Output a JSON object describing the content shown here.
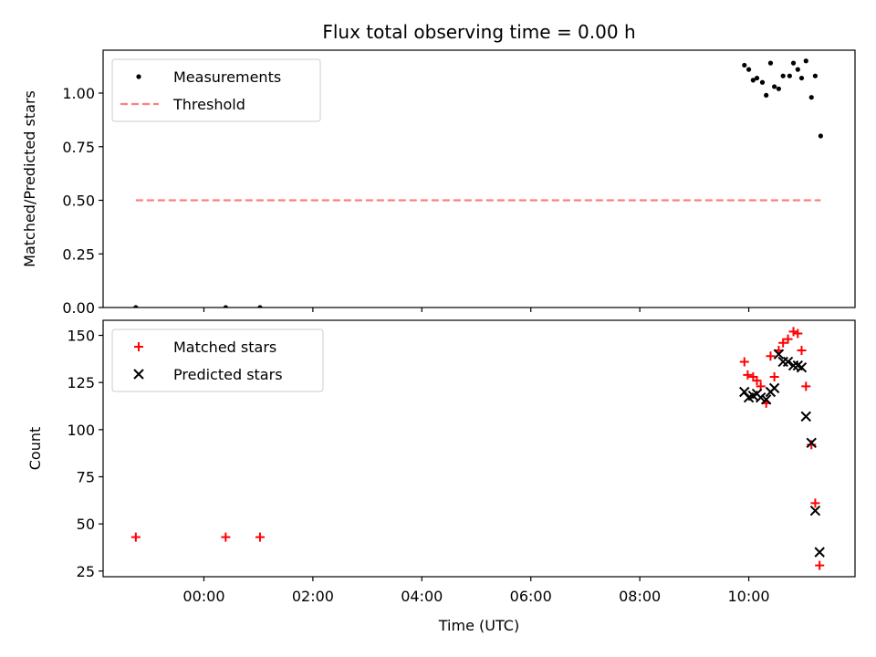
{
  "chart_data": {
    "type": "scatter",
    "title": "Flux total observing time = 0.00 h",
    "xlabel": "Time (UTC)",
    "xlim_hours": [
      -1.85,
      11.95
    ],
    "x_ticks": [
      {
        "value": 0,
        "label": "00:00"
      },
      {
        "value": 2,
        "label": "02:00"
      },
      {
        "value": 4,
        "label": "04:00"
      },
      {
        "value": 6,
        "label": "06:00"
      },
      {
        "value": 8,
        "label": "08:00"
      },
      {
        "value": 10,
        "label": "10:00"
      }
    ],
    "panels": [
      {
        "id": "ratio",
        "ylabel": "Matched/Predicted stars",
        "ylim": [
          0,
          1.2
        ],
        "y_ticks": [
          {
            "value": 0,
            "label": "0.00"
          },
          {
            "value": 0.25,
            "label": "0.25"
          },
          {
            "value": 0.5,
            "label": "0.50"
          },
          {
            "value": 0.75,
            "label": "0.75"
          },
          {
            "value": 1.0,
            "label": "1.00"
          }
        ],
        "legend": [
          "Measurements",
          "Threshold"
        ],
        "series": [
          {
            "name": "Measurements",
            "marker": "dot",
            "color": "#000000",
            "points": [
              [
                -1.25,
                0.0
              ],
              [
                0.4,
                0.0
              ],
              [
                1.03,
                0.0
              ],
              [
                9.92,
                1.13
              ],
              [
                10.0,
                1.11
              ],
              [
                10.08,
                1.06
              ],
              [
                10.15,
                1.07
              ],
              [
                10.25,
                1.05
              ],
              [
                10.32,
                0.99
              ],
              [
                10.4,
                1.14
              ],
              [
                10.47,
                1.03
              ],
              [
                10.55,
                1.02
              ],
              [
                10.63,
                1.08
              ],
              [
                10.75,
                1.08
              ],
              [
                10.82,
                1.14
              ],
              [
                10.9,
                1.11
              ],
              [
                10.97,
                1.07
              ],
              [
                11.05,
                1.15
              ],
              [
                11.15,
                0.98
              ],
              [
                11.22,
                1.08
              ],
              [
                11.32,
                0.8
              ]
            ]
          },
          {
            "name": "Threshold",
            "marker": "dashed-line",
            "color": "#ff7f7f",
            "points": [
              [
                -1.25,
                0.5
              ],
              [
                11.32,
                0.5
              ]
            ]
          }
        ]
      },
      {
        "id": "counts",
        "ylabel": "Count",
        "ylim": [
          22,
          158
        ],
        "y_ticks": [
          {
            "value": 25,
            "label": "25"
          },
          {
            "value": 50,
            "label": "50"
          },
          {
            "value": 75,
            "label": "75"
          },
          {
            "value": 100,
            "label": "100"
          },
          {
            "value": 125,
            "label": "125"
          },
          {
            "value": 150,
            "label": "150"
          }
        ],
        "legend": [
          "Matched stars",
          "Predicted stars"
        ],
        "series": [
          {
            "name": "Matched stars",
            "marker": "plus",
            "color": "#ff0000",
            "points": [
              [
                -1.25,
                43
              ],
              [
                0.4,
                43
              ],
              [
                1.03,
                43
              ],
              [
                9.92,
                136
              ],
              [
                9.98,
                129
              ],
              [
                10.08,
                128
              ],
              [
                10.15,
                126
              ],
              [
                10.22,
                123
              ],
              [
                10.32,
                114
              ],
              [
                10.4,
                139
              ],
              [
                10.47,
                128
              ],
              [
                10.55,
                142
              ],
              [
                10.63,
                146
              ],
              [
                10.72,
                148
              ],
              [
                10.82,
                152
              ],
              [
                10.9,
                151
              ],
              [
                10.97,
                142
              ],
              [
                11.05,
                123
              ],
              [
                11.15,
                92
              ],
              [
                11.22,
                61
              ],
              [
                11.3,
                28
              ]
            ]
          },
          {
            "name": "Predicted stars",
            "marker": "cross",
            "color": "#000000",
            "points": [
              [
                9.92,
                120
              ],
              [
                10.0,
                117
              ],
              [
                10.08,
                118
              ],
              [
                10.15,
                119
              ],
              [
                10.22,
                117
              ],
              [
                10.32,
                116
              ],
              [
                10.4,
                120
              ],
              [
                10.47,
                122
              ],
              [
                10.55,
                140
              ],
              [
                10.63,
                136
              ],
              [
                10.72,
                136
              ],
              [
                10.82,
                134
              ],
              [
                10.9,
                134
              ],
              [
                10.97,
                133
              ],
              [
                11.05,
                107
              ],
              [
                11.15,
                93
              ],
              [
                11.22,
                57
              ],
              [
                11.3,
                35
              ]
            ]
          }
        ]
      }
    ]
  }
}
